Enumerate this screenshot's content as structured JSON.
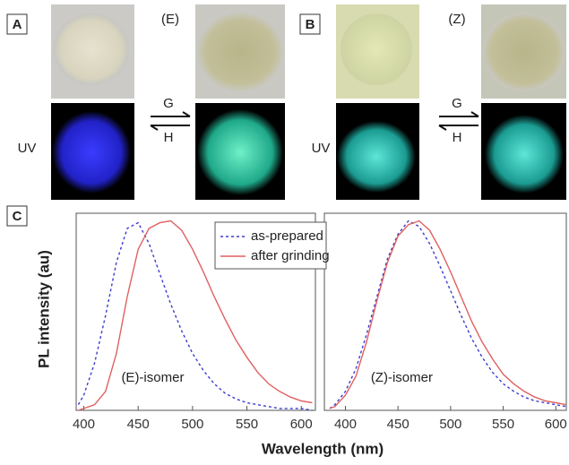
{
  "panels": {
    "A": {
      "label": "A",
      "isomer": "(E)",
      "forward": "G",
      "reverse": "H",
      "uv": "UV"
    },
    "B": {
      "label": "B",
      "isomer": "(Z)",
      "forward": "G",
      "reverse": "H",
      "uv": "UV"
    },
    "C": {
      "label": "C"
    }
  },
  "x_axis_label": "Wavelength (nm)",
  "y_axis_label": "PL intensity (au)",
  "chart_data": [
    {
      "type": "line",
      "annotation": "(E)-isomer",
      "x": [
        395,
        400,
        410,
        420,
        430,
        440,
        450,
        460,
        470,
        480,
        490,
        500,
        510,
        520,
        530,
        540,
        550,
        560,
        570,
        580,
        590,
        600,
        610
      ],
      "xlim": [
        393,
        613
      ],
      "xticks": [
        400,
        450,
        500,
        550,
        600
      ],
      "ylim": [
        0,
        1.04
      ],
      "series": [
        {
          "name": "as-prepared",
          "color": "#3b3bd0",
          "dash": true,
          "values": [
            0.03,
            0.08,
            0.25,
            0.5,
            0.78,
            0.96,
            0.99,
            0.88,
            0.72,
            0.56,
            0.42,
            0.3,
            0.21,
            0.14,
            0.09,
            0.06,
            0.04,
            0.03,
            0.02,
            0.01,
            0.01,
            0.01,
            0.0
          ]
        },
        {
          "name": "after grinding",
          "color": "#e06060",
          "dash": false,
          "values": [
            0,
            0.01,
            0.03,
            0.1,
            0.3,
            0.6,
            0.85,
            0.96,
            0.99,
            1.0,
            0.95,
            0.85,
            0.73,
            0.6,
            0.48,
            0.37,
            0.28,
            0.2,
            0.14,
            0.1,
            0.07,
            0.05,
            0.04
          ]
        }
      ]
    },
    {
      "type": "line",
      "annotation": "(Z)-isomer",
      "x": [
        385,
        390,
        400,
        410,
        420,
        430,
        440,
        450,
        460,
        470,
        480,
        490,
        500,
        510,
        520,
        530,
        540,
        550,
        560,
        570,
        580,
        590,
        600,
        610
      ],
      "xlim": [
        380,
        610
      ],
      "xticks": [
        400,
        450,
        500,
        550,
        600
      ],
      "ylim": [
        0,
        1.04
      ],
      "series": [
        {
          "color": "#3b3bd0",
          "dash": true,
          "values": [
            0.01,
            0.03,
            0.1,
            0.22,
            0.4,
            0.6,
            0.8,
            0.93,
            1.0,
            0.97,
            0.88,
            0.76,
            0.63,
            0.5,
            0.38,
            0.28,
            0.2,
            0.14,
            0.1,
            0.07,
            0.05,
            0.04,
            0.03,
            0.02
          ]
        },
        {
          "color": "#e06060",
          "dash": false,
          "values": [
            0.01,
            0.02,
            0.08,
            0.18,
            0.36,
            0.58,
            0.78,
            0.92,
            0.98,
            1.0,
            0.95,
            0.85,
            0.73,
            0.6,
            0.47,
            0.36,
            0.27,
            0.19,
            0.14,
            0.1,
            0.07,
            0.05,
            0.04,
            0.03
          ]
        }
      ]
    }
  ]
}
